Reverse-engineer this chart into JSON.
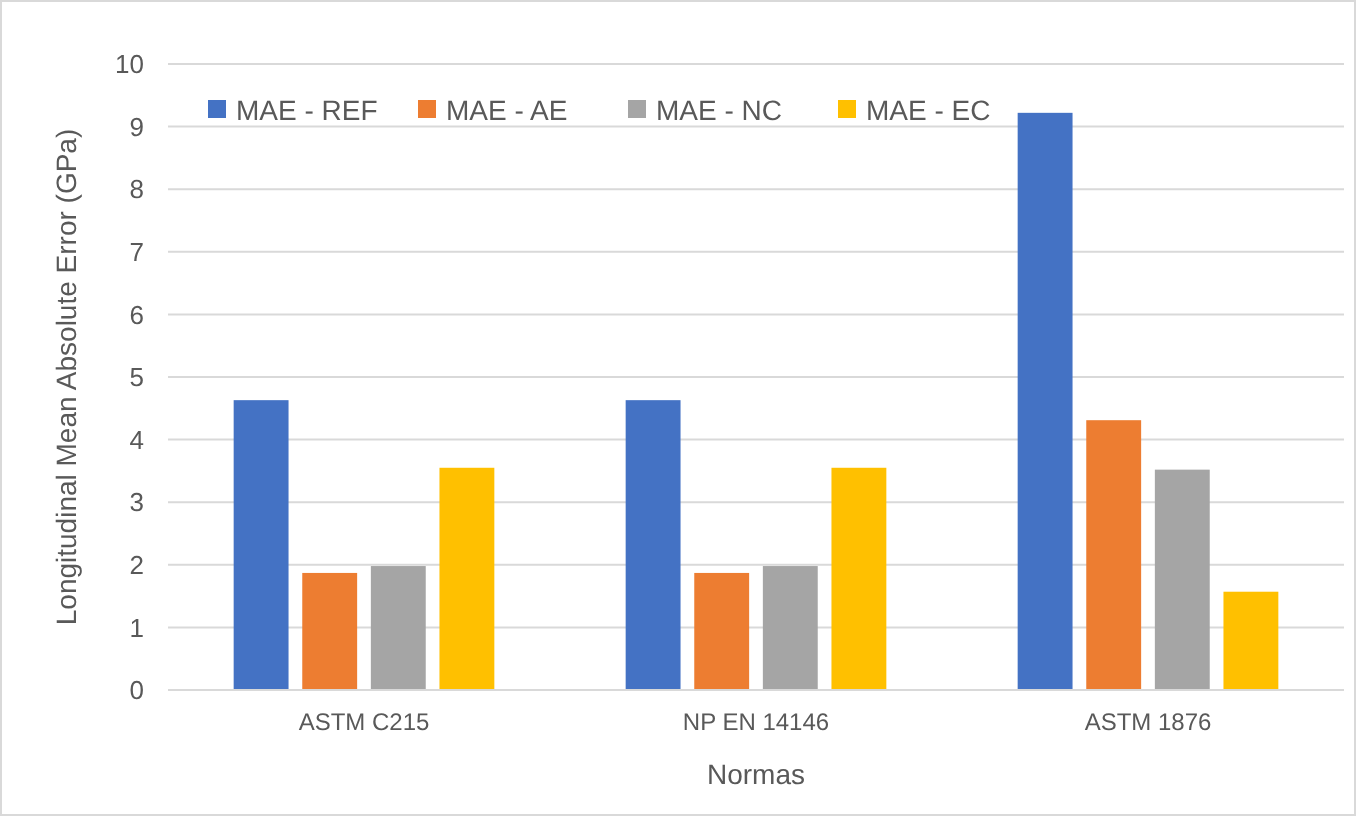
{
  "chart_data": {
    "type": "bar",
    "xlabel": "Normas",
    "ylabel": "Longitudinal Mean Absolute Error (GPa)",
    "categories": [
      "ASTM C215",
      "NP EN 14146",
      "ASTM 1876"
    ],
    "series": [
      {
        "name": "MAE - REF",
        "color": "#4472c4",
        "values": [
          4.63,
          4.63,
          9.22
        ]
      },
      {
        "name": "MAE - AE",
        "color": "#ed7d31",
        "values": [
          1.87,
          1.87,
          4.31
        ]
      },
      {
        "name": "MAE - NC",
        "color": "#a5a5a5",
        "values": [
          1.98,
          1.98,
          3.52
        ]
      },
      {
        "name": "MAE - EC",
        "color": "#ffc000",
        "values": [
          3.55,
          3.55,
          1.57
        ]
      }
    ],
    "ylim": [
      0,
      10
    ],
    "yticks": [
      0,
      1,
      2,
      3,
      4,
      5,
      6,
      7,
      8,
      9,
      10
    ],
    "grid": "y",
    "legend": "top left"
  }
}
